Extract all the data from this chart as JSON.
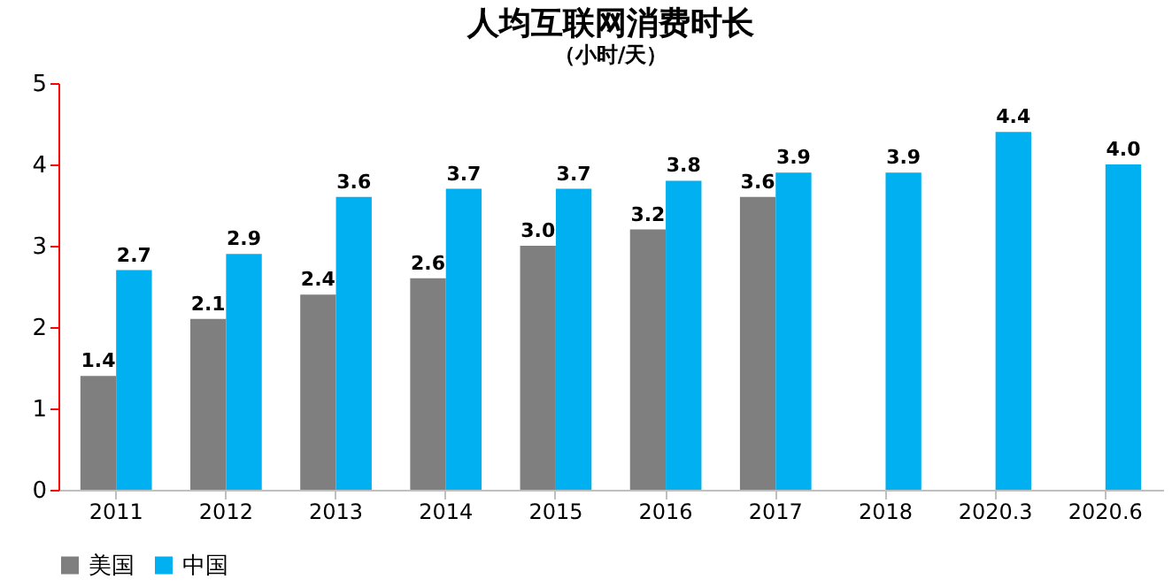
{
  "chart_data": {
    "type": "bar",
    "title": "人均互联网消费时长",
    "subtitle": "（小时/天）",
    "categories": [
      "2011",
      "2012",
      "2013",
      "2014",
      "2015",
      "2016",
      "2017",
      "2018",
      "2020.3",
      "2020.6"
    ],
    "series": [
      {
        "name": "美国",
        "color": "#7f7f7f",
        "values": [
          1.4,
          2.1,
          2.4,
          2.6,
          3.0,
          3.2,
          3.6,
          null,
          null,
          null
        ],
        "value_labels": [
          "1.4",
          "2.1",
          "2.4",
          "2.6",
          "3.0",
          "3.2",
          "3.6",
          null,
          null,
          null
        ]
      },
      {
        "name": "中国",
        "color": "#00b0f0",
        "values": [
          2.7,
          2.9,
          3.6,
          3.7,
          3.7,
          3.8,
          3.9,
          3.9,
          4.4,
          4.0
        ],
        "value_labels": [
          "2.7",
          "2.9",
          "3.6",
          "3.7",
          "3.7",
          "3.8",
          "3.9",
          "3.9",
          "4.4",
          "4.0"
        ]
      }
    ],
    "ylim": [
      0,
      5
    ],
    "yticks": [
      0,
      1,
      2,
      3,
      4,
      5
    ],
    "grid": false,
    "legend": "bottom"
  }
}
